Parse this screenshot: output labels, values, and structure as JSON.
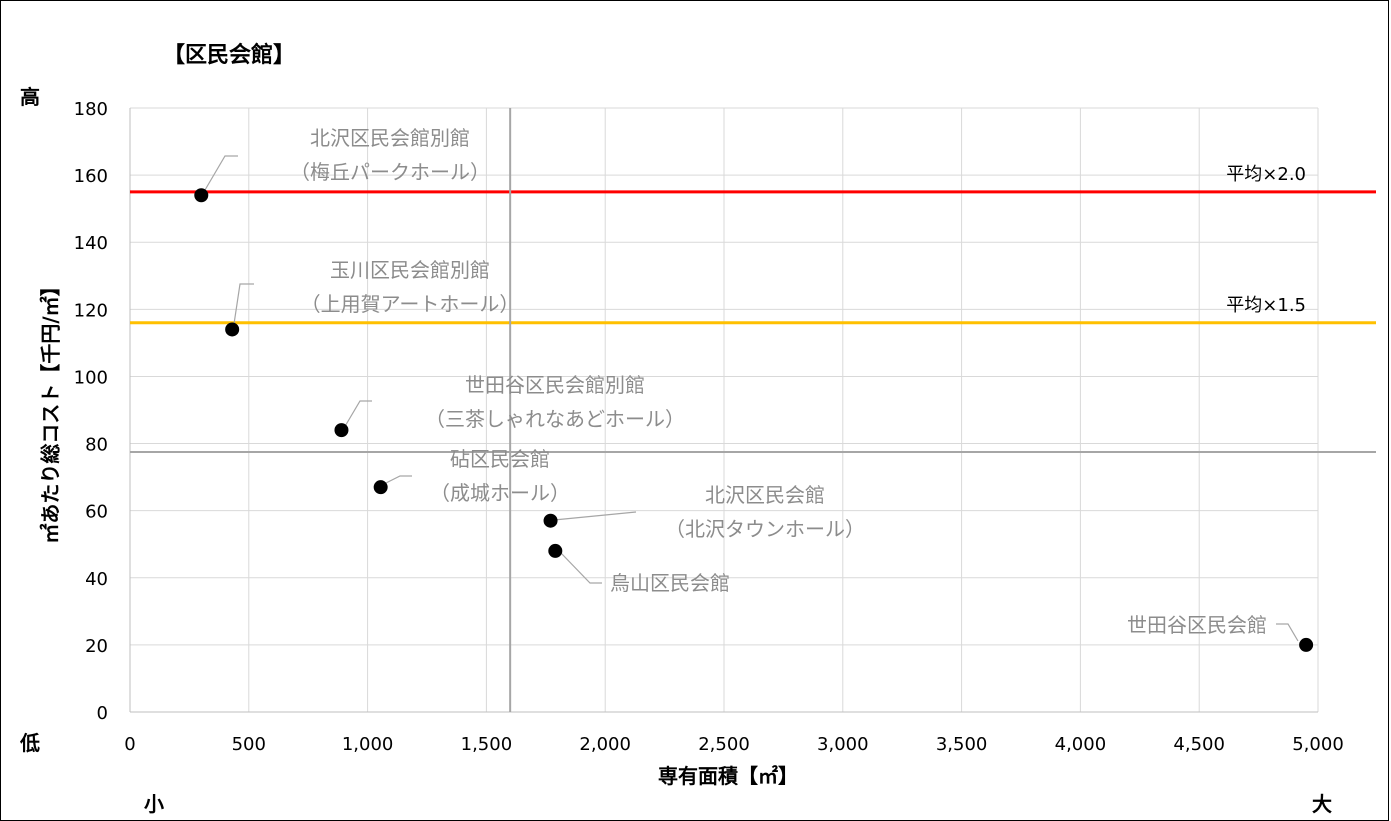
{
  "chart_data": {
    "type": "scatter",
    "title": "【区民会館】",
    "xlabel": "専有面積【㎡】",
    "ylabel": "㎡あたり総コスト【千円/㎡】",
    "xlim": [
      0,
      5000
    ],
    "ylim": [
      0,
      180
    ],
    "grid": true,
    "x_ticks": [
      0,
      500,
      1000,
      1500,
      2000,
      2500,
      3000,
      3500,
      4000,
      4500,
      5000
    ],
    "x_tick_labels": [
      "0",
      "500",
      "1,000",
      "1,500",
      "2,000",
      "2,500",
      "3,000",
      "3,500",
      "4,000",
      "4,500",
      "5,000"
    ],
    "y_ticks": [
      0,
      20,
      40,
      60,
      80,
      100,
      120,
      140,
      160,
      180
    ],
    "y_tick_labels": [
      "0",
      "20",
      "40",
      "60",
      "80",
      "100",
      "120",
      "140",
      "160",
      "180"
    ],
    "corner_labels": {
      "y_high": "高",
      "y_low": "低",
      "x_small": "小",
      "x_large": "大"
    },
    "points": [
      {
        "label": [
          "北沢区民会館別館",
          "（梅丘パークホール）"
        ],
        "x": 300,
        "y": 154
      },
      {
        "label": [
          "玉川区民会館別館",
          "（上用賀アートホール）"
        ],
        "x": 430,
        "y": 114
      },
      {
        "label": [
          "世田谷区民会館別館",
          "（三茶しゃれなあどホール）"
        ],
        "x": 890,
        "y": 84
      },
      {
        "label": [
          "砧区民会館",
          "（成城ホール）"
        ],
        "x": 1055,
        "y": 67
      },
      {
        "label": [
          "北沢区民会館",
          "（北沢タウンホール）"
        ],
        "x": 1770,
        "y": 57
      },
      {
        "label": [
          "烏山区民会館"
        ],
        "x": 1790,
        "y": 48
      },
      {
        "label": [
          "世田谷区民会館"
        ],
        "x": 4950,
        "y": 20
      }
    ],
    "reference_lines": [
      {
        "orientation": "horizontal",
        "y": 155,
        "label": "平均×2.0",
        "color": "#ff0000"
      },
      {
        "orientation": "horizontal",
        "y": 116,
        "label": "平均×1.5",
        "color": "#ffc000"
      },
      {
        "orientation": "horizontal",
        "y": 77.5,
        "label": "",
        "color": "#a6a6a6"
      },
      {
        "orientation": "vertical",
        "x": 1600,
        "label": "",
        "color": "#a6a6a6"
      }
    ]
  }
}
